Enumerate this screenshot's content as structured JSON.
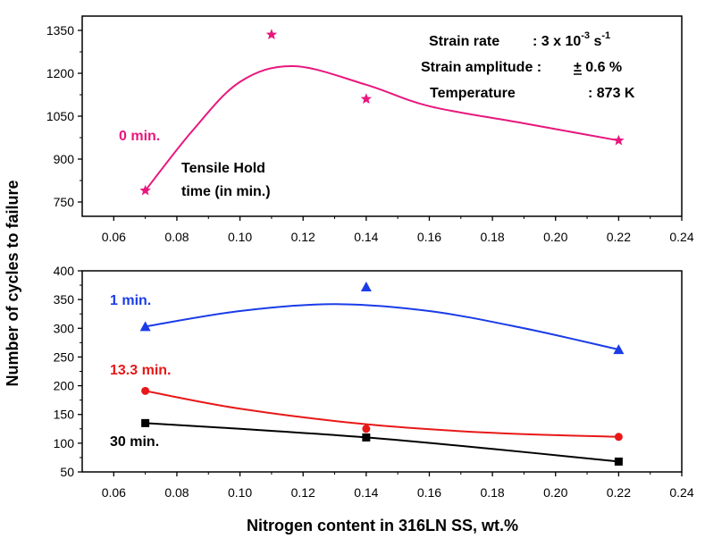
{
  "chart_data": [
    {
      "type": "line",
      "panel": "top",
      "xlim": [
        0.05,
        0.24
      ],
      "ylim": [
        700,
        1400
      ],
      "x_ticks": [
        0.06,
        0.08,
        0.1,
        0.12,
        0.14,
        0.16,
        0.18,
        0.2,
        0.22,
        0.24
      ],
      "y_ticks": [
        750,
        900,
        1050,
        1200,
        1350
      ],
      "series": [
        {
          "name": "0 min.",
          "color": "#e8177d",
          "marker": "star",
          "points": [
            {
              "x": 0.07,
              "y": 790
            },
            {
              "x": 0.11,
              "y": 1335
            },
            {
              "x": 0.14,
              "y": 1110
            },
            {
              "x": 0.22,
              "y": 965
            }
          ],
          "curve": [
            {
              "x": 0.07,
              "y": 790
            },
            {
              "x": 0.085,
              "y": 1000
            },
            {
              "x": 0.1,
              "y": 1170
            },
            {
              "x": 0.117,
              "y": 1225
            },
            {
              "x": 0.14,
              "y": 1160
            },
            {
              "x": 0.16,
              "y": 1085
            },
            {
              "x": 0.19,
              "y": 1025
            },
            {
              "x": 0.22,
              "y": 965
            }
          ]
        }
      ],
      "annotations": {
        "legend_title_line1": "Tensile Hold",
        "legend_title_line2": "time (in min.)",
        "strain_rate_label": "Strain rate",
        "strain_rate_value": ": 3 x 10",
        "strain_rate_exp": "-3",
        "strain_rate_unit": " s",
        "strain_rate_unit_exp": "-1",
        "strain_amp_label": "Strain amplitude :",
        "strain_amp_value": "± 0.6 %",
        "temp_label": "Temperature",
        "temp_value": ": 873 K"
      }
    },
    {
      "type": "line",
      "panel": "bottom",
      "xlim": [
        0.05,
        0.24
      ],
      "ylim": [
        50,
        400
      ],
      "x_ticks": [
        0.06,
        0.08,
        0.1,
        0.12,
        0.14,
        0.16,
        0.18,
        0.2,
        0.22,
        0.24
      ],
      "y_ticks": [
        50,
        100,
        150,
        200,
        250,
        300,
        350,
        400
      ],
      "series": [
        {
          "name": "1 min.",
          "color": "#1a3ce8",
          "marker": "triangle",
          "points": [
            {
              "x": 0.07,
              "y": 303
            },
            {
              "x": 0.14,
              "y": 372
            },
            {
              "x": 0.22,
              "y": 263
            }
          ],
          "curve": [
            {
              "x": 0.07,
              "y": 303
            },
            {
              "x": 0.1,
              "y": 330
            },
            {
              "x": 0.13,
              "y": 342
            },
            {
              "x": 0.16,
              "y": 330
            },
            {
              "x": 0.19,
              "y": 300
            },
            {
              "x": 0.22,
              "y": 263
            }
          ]
        },
        {
          "name": "13.3 min.",
          "color": "#e81818",
          "marker": "circle",
          "points": [
            {
              "x": 0.07,
              "y": 191
            },
            {
              "x": 0.14,
              "y": 125
            },
            {
              "x": 0.22,
              "y": 111
            }
          ],
          "curve": [
            {
              "x": 0.07,
              "y": 191
            },
            {
              "x": 0.1,
              "y": 160
            },
            {
              "x": 0.14,
              "y": 133
            },
            {
              "x": 0.18,
              "y": 118
            },
            {
              "x": 0.22,
              "y": 111
            }
          ]
        },
        {
          "name": "30 min.",
          "color": "#000000",
          "marker": "square",
          "points": [
            {
              "x": 0.07,
              "y": 135
            },
            {
              "x": 0.14,
              "y": 110
            },
            {
              "x": 0.22,
              "y": 68
            }
          ],
          "curve": [
            {
              "x": 0.07,
              "y": 135
            },
            {
              "x": 0.1,
              "y": 125
            },
            {
              "x": 0.14,
              "y": 110
            },
            {
              "x": 0.18,
              "y": 90
            },
            {
              "x": 0.22,
              "y": 68
            }
          ]
        }
      ]
    }
  ],
  "axes": {
    "ylabel": "Number of cycles to failure",
    "xlabel": "Nitrogen content in 316LN SS, wt.%"
  }
}
